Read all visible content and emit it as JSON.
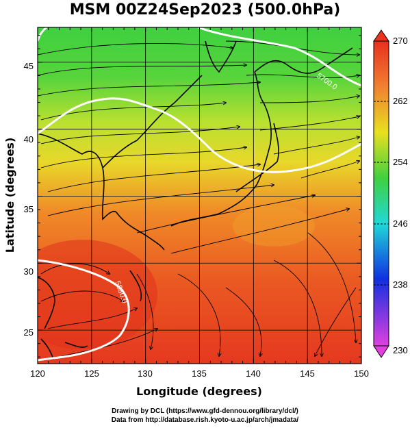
{
  "title": "MSM 00Z24Sep2023 (500.0hPa)",
  "xlabel": "Longitude (degrees)",
  "ylabel": "Latitude  (degrees)",
  "x_ticks": [
    "120",
    "125",
    "130",
    "135",
    "140",
    "145",
    "150"
  ],
  "y_ticks": [
    "25",
    "30",
    "35",
    "40",
    "45"
  ],
  "colorbar_ticks": [
    "270",
    "262",
    "254",
    "246",
    "238",
    "230"
  ],
  "contour_labels": [
    "5700.0",
    "5880.0"
  ],
  "credit_line1": "Drawing by DCL (https://www.gfd-dennou.org/library/dcl/)",
  "credit_line2": "Data from http://database.rish.kyoto-u.ac.jp/arch/jmadata/",
  "map": {
    "lon_range": [
      120,
      150
    ],
    "lat_range": [
      22.5,
      47.6
    ],
    "colorbar_range": [
      230,
      270
    ],
    "field": "temperature (K) shaded, wind streamlines, geopotential height contours",
    "gridlines": true
  },
  "colors": {
    "warm": "#e8341c",
    "orange": "#f4a020",
    "yellow": "#e8e020",
    "green": "#40d040",
    "cyan": "#20d8d8",
    "blue": "#1030e0",
    "magenta": "#e040e0",
    "contour": "#ffffff"
  }
}
